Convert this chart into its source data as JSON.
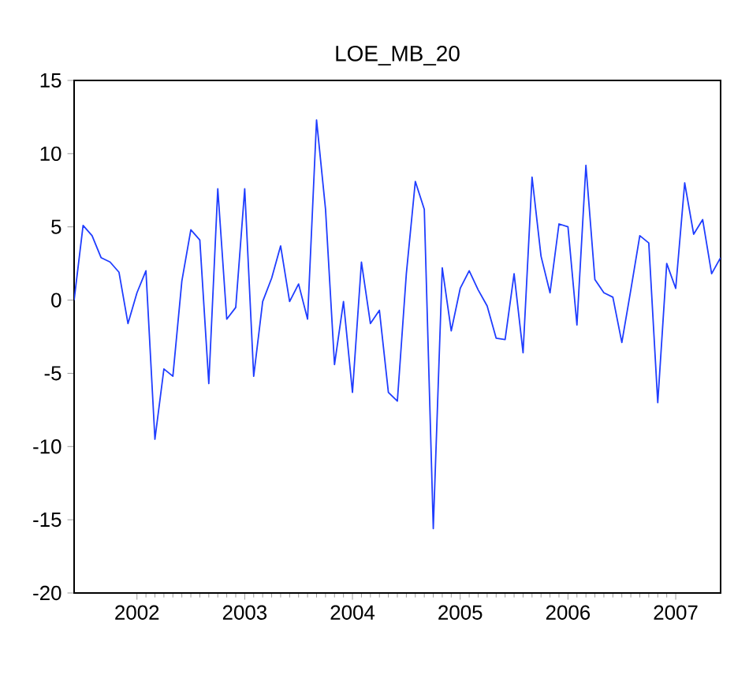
{
  "chart_data": {
    "type": "line",
    "title": "LOE_MB_20",
    "x": [
      "2001-11",
      "2001-12",
      "2002-01",
      "2002-02",
      "2002-03",
      "2002-04",
      "2002-05",
      "2002-06",
      "2002-07",
      "2002-08",
      "2002-09",
      "2002-10",
      "2002-11",
      "2002-12",
      "2003-01",
      "2003-02",
      "2003-03",
      "2003-04",
      "2003-05",
      "2003-06",
      "2003-07",
      "2003-08",
      "2003-09",
      "2003-10",
      "2003-11",
      "2003-12",
      "2004-01",
      "2004-02",
      "2004-03",
      "2004-04",
      "2004-05",
      "2004-06",
      "2004-07",
      "2004-08",
      "2004-09",
      "2004-10",
      "2004-11",
      "2004-12",
      "2005-01",
      "2005-02",
      "2005-03",
      "2005-04",
      "2005-05",
      "2005-06",
      "2005-07",
      "2005-08",
      "2005-09",
      "2005-10",
      "2005-11",
      "2005-12",
      "2006-01",
      "2006-02",
      "2006-03",
      "2006-04",
      "2006-05",
      "2006-06",
      "2006-07",
      "2006-08",
      "2006-09",
      "2006-10",
      "2006-11",
      "2006-12",
      "2007-01",
      "2007-02",
      "2007-03",
      "2007-04",
      "2007-05",
      "2007-06",
      "2007-07",
      "2007-08",
      "2007-09",
      "2007-10",
      "2007-11"
    ],
    "series": [
      {
        "color": "#1f3dff",
        "values": [
          0,
          5.1,
          4.4,
          2.9,
          2.6,
          1.9,
          -1.6,
          0.5,
          2.0,
          -9.5,
          -4.7,
          -5.2,
          1.3,
          4.8,
          4.1,
          -5.7,
          7.6,
          -1.3,
          -0.5,
          7.6,
          -5.2,
          -0.1,
          1.5,
          3.7,
          -0.1,
          1.1,
          -1.3,
          12.3,
          6.2,
          -4.4,
          -0.1,
          -6.3,
          2.6,
          -1.6,
          -0.7,
          -6.3,
          -6.9,
          1.8,
          8.1,
          6.2,
          -15.6,
          2.2,
          -2.1,
          0.8,
          2.0,
          0.7,
          -0.4,
          -2.6,
          -2.7,
          1.8,
          -3.6,
          8.4,
          3.0,
          0.5,
          5.2,
          5.0,
          -1.7,
          9.2,
          1.4,
          0.5,
          0.2,
          -2.9,
          0.7,
          4.4,
          3.9,
          -7.0,
          2.5,
          0.8,
          8.0,
          4.5,
          5.5,
          1.8,
          2.9
        ]
      }
    ],
    "xlim": [
      "2001-11",
      "2007-11"
    ],
    "xticks": [
      {
        "value": "2002-06",
        "label": "2002"
      },
      {
        "value": "2003-06",
        "label": "2003"
      },
      {
        "value": "2004-06",
        "label": "2004"
      },
      {
        "value": "2005-06",
        "label": "2005"
      },
      {
        "value": "2006-06",
        "label": "2006"
      },
      {
        "value": "2007-06",
        "label": "2007"
      }
    ],
    "ylim": [
      -20,
      15
    ],
    "yticks": [
      15,
      10,
      5,
      0,
      -5,
      -10,
      -15,
      -20
    ],
    "marker": "none",
    "line_style": "solid"
  }
}
